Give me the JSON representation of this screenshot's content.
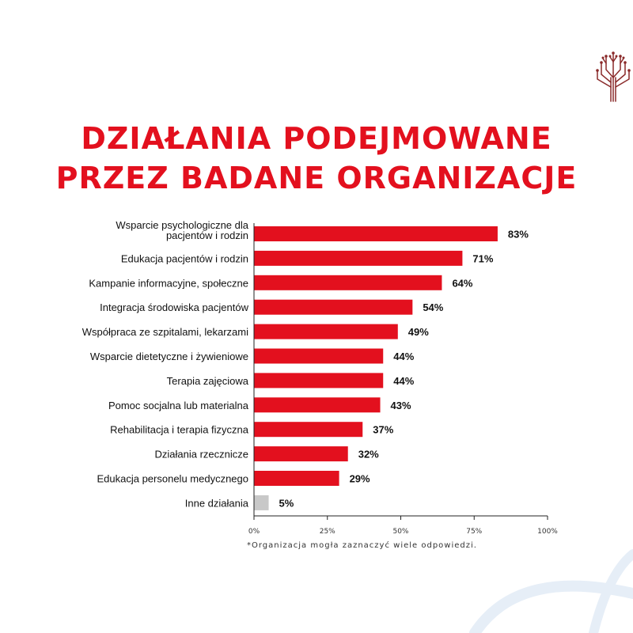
{
  "title": {
    "line1": "DZIAŁANIA PODEJMOWANE",
    "line2": "PRZEZ BADANE ORGANIZACJE"
  },
  "footnote": "*Organizacja mogła zaznaczyć wiele odpowiedzi.",
  "colors": {
    "accent": "#e3101e",
    "other": "#c8c8c8",
    "logo": "#8a2a2a",
    "deco": "#e6eef7"
  },
  "icons": {
    "logo": "tree-logo-icon"
  },
  "chart_data": {
    "type": "bar",
    "orientation": "horizontal",
    "title": "DZIAŁANIA PODEJMOWANE PRZEZ BADANE ORGANIZACJE",
    "categories": [
      [
        "Wsparcie psychologiczne dla",
        "pacjentów i rodzin"
      ],
      "Edukacja pacjentów i rodzin",
      "Kampanie informacyjne, społeczne",
      "Integracja środowiska pacjentów",
      "Współpraca ze szpitalami, lekarzami",
      "Wsparcie dietetyczne i żywieniowe",
      "Terapia zajęciowa",
      "Pomoc socjalna lub materialna",
      "Rehabilitacja i terapia fizyczna",
      "Działania rzecznicze",
      "Edukacja personelu medycznego",
      "Inne działania"
    ],
    "values": [
      83,
      71,
      64,
      54,
      49,
      44,
      44,
      43,
      37,
      32,
      29,
      5
    ],
    "data_labels": [
      "83%",
      "71%",
      "64%",
      "54%",
      "49%",
      "44%",
      "44%",
      "43%",
      "37%",
      "32%",
      "29%",
      "5%"
    ],
    "xlim": [
      0,
      100
    ],
    "xticks": [
      0,
      25,
      50,
      75,
      100
    ],
    "xtick_labels": [
      "0%",
      "25%",
      "50%",
      "75%",
      "100%"
    ],
    "grid": false,
    "legend": "none"
  }
}
